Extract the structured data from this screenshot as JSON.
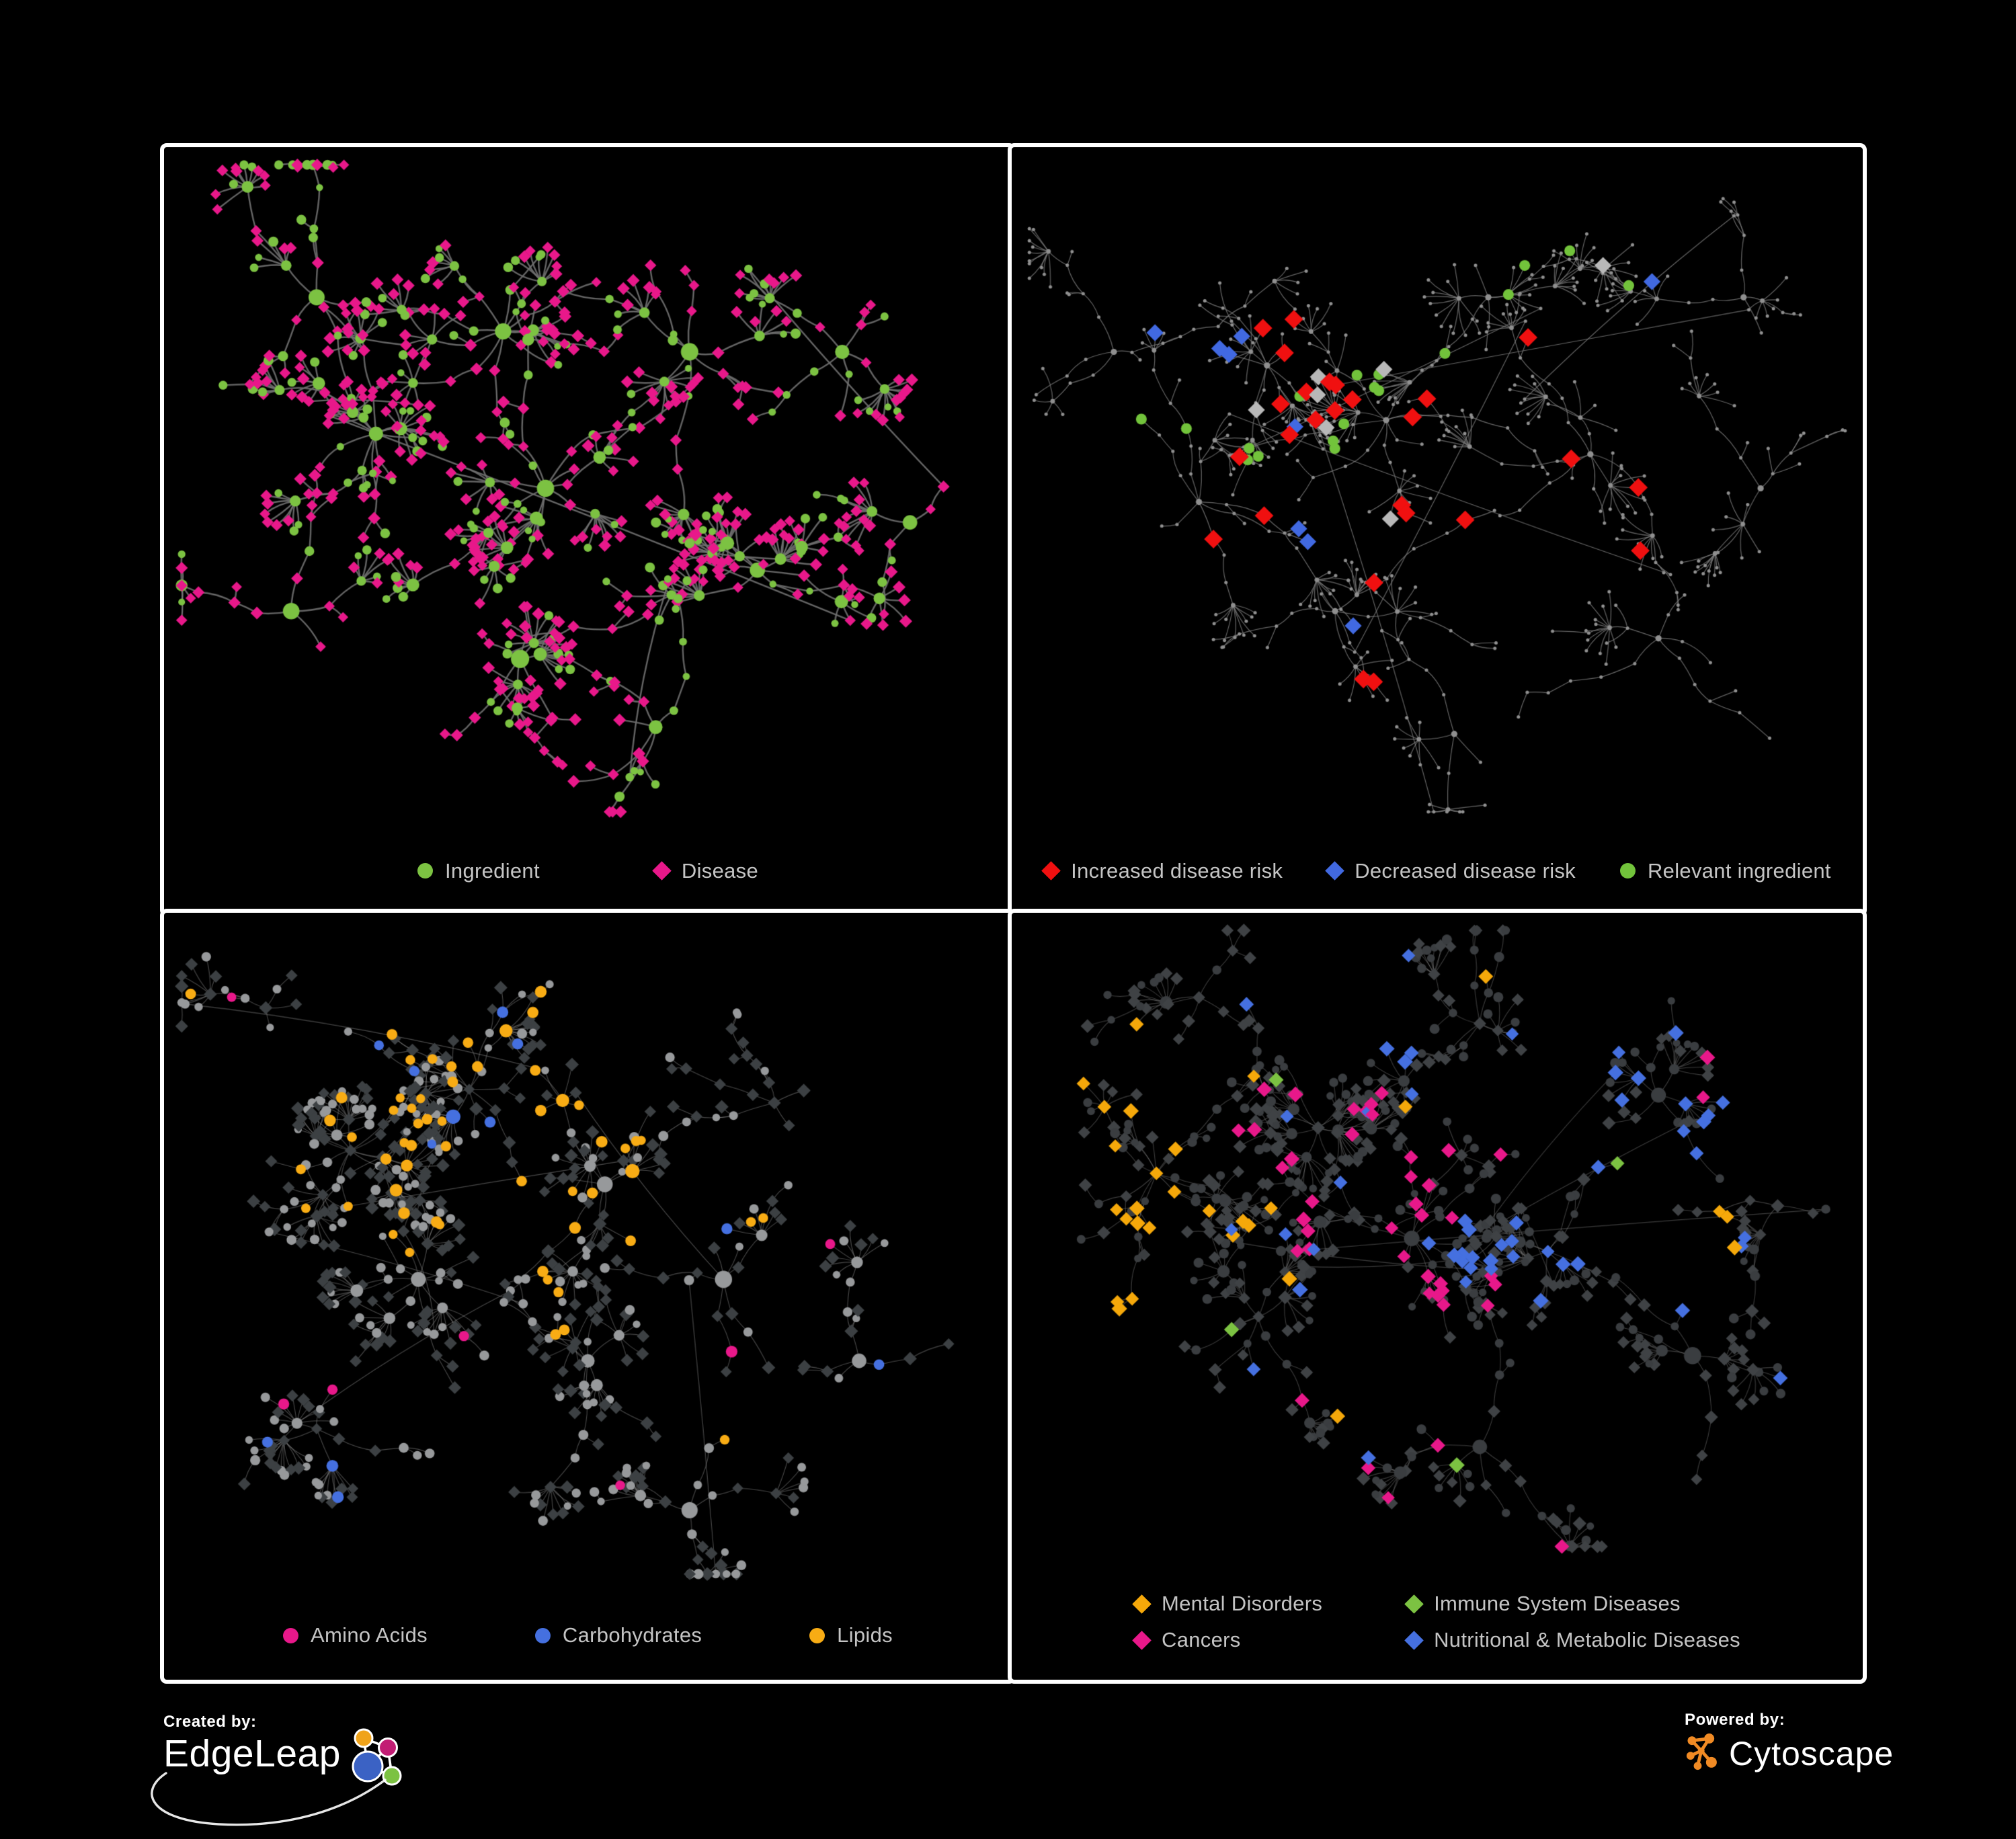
{
  "branding": {
    "created_by_label": "Created by:",
    "created_by_brand": "EdgeLeap",
    "powered_by_label": "Powered by:",
    "powered_by_brand": "Cytoscape"
  },
  "colors": {
    "background": "#000000",
    "panel_border": "#FFFFFF",
    "legend_text": "#C4C4C4",
    "green": "#7CC242",
    "magenta": "#E8188A",
    "red": "#F01010",
    "blue": "#4169E1",
    "amber": "#F5A80A",
    "silver": "#B8B8B8",
    "cytoscape_orange": "#F08A24"
  },
  "chart_data": {
    "type": "network",
    "title": "",
    "layout": "four-panel node-link network figure, black background, white panel frames",
    "panels": [
      {
        "id": "ingredient-disease-network",
        "legend": [
          {
            "label": "Ingredient",
            "color": "#7CC242",
            "shape": "circle"
          },
          {
            "label": "Disease",
            "color": "#E8188A",
            "shape": "diamond"
          }
        ],
        "render": {
          "seed": 14,
          "clusters": [
            [
              0.4,
              0.27,
              11
            ],
            [
              0.25,
              0.42,
              12
            ],
            [
              0.45,
              0.5,
              10
            ],
            [
              0.62,
              0.3,
              7
            ],
            [
              0.18,
              0.22,
              5
            ],
            [
              0.7,
              0.62,
              7
            ],
            [
              0.42,
              0.75,
              7
            ],
            [
              0.8,
              0.3,
              5
            ],
            [
              0.58,
              0.85,
              5
            ],
            [
              0.15,
              0.68,
              4
            ],
            [
              0.88,
              0.55,
              3
            ]
          ],
          "steps": 4,
          "step": [
            30,
            70
          ],
          "subP": 0.2,
          "fan": [
            5,
            13
          ],
          "links": 6,
          "edge": {
            "color": "#6F6F6F",
            "width": 2.4,
            "alpha": 0.9
          },
          "paint": {
            "mode": "duo",
            "circle": "#7CC242",
            "diamond": "#E8188A",
            "circleProb": 0.3
          }
        }
      },
      {
        "id": "disease-risk-network",
        "legend": [
          {
            "label": "Increased disease risk",
            "color": "#F01010",
            "shape": "diamond"
          },
          {
            "label": "Decreased disease risk",
            "color": "#4169E1",
            "shape": "diamond"
          },
          {
            "label": "Relevant ingredient",
            "color": "#72C33B",
            "shape": "circle"
          }
        ],
        "render": {
          "seed": 27,
          "clusters": [
            [
              0.3,
              0.32,
              10
            ],
            [
              0.44,
              0.4,
              9
            ],
            [
              0.22,
              0.52,
              7
            ],
            [
              0.56,
              0.22,
              6
            ],
            [
              0.68,
              0.45,
              7
            ],
            [
              0.38,
              0.68,
              6
            ],
            [
              0.76,
              0.72,
              5
            ],
            [
              0.86,
              0.22,
              4
            ],
            [
              0.12,
              0.3,
              4
            ],
            [
              0.52,
              0.86,
              4
            ],
            [
              0.88,
              0.5,
              3
            ]
          ],
          "steps": 6,
          "step": [
            26,
            60
          ],
          "subP": 0.18,
          "fan": [
            4,
            11
          ],
          "links": 6,
          "edge": {
            "color": "#7D7D7D",
            "width": 1.2,
            "alpha": 0.8
          },
          "paint": {
            "mode": "spot",
            "base": "#8F8F8F",
            "highlights": [
              {
                "color": "#F01010",
                "shape": "diamond",
                "size": 11,
                "count": 26,
                "clusters": [
                  0,
                  1,
                  2,
                  4,
                  5
                ]
              },
              {
                "color": "#B8B8B8",
                "shape": "diamond",
                "size": 10,
                "count": 7,
                "clusters": [
                  0,
                  1,
                  3
                ]
              },
              {
                "color": "#4169E1",
                "shape": "diamond",
                "size": 10,
                "count": 9,
                "clusters": [
                  0,
                  2,
                  7
                ]
              },
              {
                "color": "#72C33B",
                "shape": "circle",
                "size": 8,
                "count": 18,
                "clusters": [
                  0,
                  1,
                  2,
                  3
                ]
              }
            ]
          }
        }
      },
      {
        "id": "nutrient-class-network",
        "legend": [
          {
            "label": "Amino Acids",
            "color": "#E8188A",
            "shape": "circle"
          },
          {
            "label": "Carbohydrates",
            "color": "#4570E0",
            "shape": "circle"
          },
          {
            "label": "Lipids",
            "color": "#F8AC14",
            "shape": "circle"
          }
        ],
        "render": {
          "seed": 41,
          "clusters": [
            [
              0.22,
              0.35,
              12
            ],
            [
              0.36,
              0.26,
              10
            ],
            [
              0.3,
              0.54,
              10
            ],
            [
              0.52,
              0.4,
              8
            ],
            [
              0.5,
              0.66,
              8
            ],
            [
              0.66,
              0.54,
              6
            ],
            [
              0.18,
              0.76,
              5
            ],
            [
              0.72,
              0.28,
              5
            ],
            [
              0.82,
              0.66,
              4
            ],
            [
              0.62,
              0.88,
              4
            ],
            [
              0.12,
              0.14,
              4
            ]
          ],
          "steps": 4,
          "step": [
            28,
            64
          ],
          "subP": 0.21,
          "fan": [
            5,
            13
          ],
          "links": 7,
          "edge": {
            "color": "#A0A0A0",
            "width": 1.1,
            "alpha": 0.45
          },
          "paint": {
            "mode": "classes",
            "colorShape": "circle",
            "diamondFrac": 0.5,
            "baseCircle": "#97999B",
            "baseDiamond": "#3C4043",
            "clusterColors": {
              "0": [
                [
                  "#F8AC14",
                  0.15
                ]
              ],
              "1": [
                [
                  "#F8AC14",
                  0.42
                ],
                [
                  "#4570E0",
                  0.2
                ]
              ],
              "2": [
                [
                  "#F8AC14",
                  0.1
                ],
                [
                  "#E8188A",
                  0.05
                ]
              ],
              "3": [
                [
                  "#F8AC14",
                  0.38
                ]
              ],
              "4": [
                [
                  "#F8AC14",
                  0.15
                ],
                [
                  "#E8188A",
                  0.07
                ]
              ]
            },
            "defaultColors": [
              [
                "#E8188A",
                0.08
              ],
              [
                "#F8AC14",
                0.06
              ],
              [
                "#4570E0",
                0.04
              ]
            ]
          }
        }
      },
      {
        "id": "disease-class-network",
        "legend": [
          {
            "label": "Mental Disorders",
            "color": "#F5A80A",
            "shape": "diamond"
          },
          {
            "label": "Immune System Diseases",
            "color": "#7CC242",
            "shape": "diamond"
          },
          {
            "label": "Cancers",
            "color": "#E8188A",
            "shape": "diamond"
          },
          {
            "label": "Nutritional & Metabolic Diseases",
            "color": "#4570E0",
            "shape": "diamond"
          }
        ],
        "render": {
          "seed": 58,
          "clusters": [
            [
              0.17,
              0.4,
              12
            ],
            [
              0.36,
              0.33,
              10
            ],
            [
              0.47,
              0.5,
              10
            ],
            [
              0.63,
              0.52,
              8
            ],
            [
              0.29,
              0.62,
              7
            ],
            [
              0.55,
              0.17,
              7
            ],
            [
              0.76,
              0.28,
              6
            ],
            [
              0.8,
              0.68,
              5
            ],
            [
              0.22,
              0.13,
              5
            ],
            [
              0.55,
              0.82,
              5
            ],
            [
              0.9,
              0.45,
              3
            ]
          ],
          "steps": 4,
          "step": [
            28,
            62
          ],
          "subP": 0.21,
          "fan": [
            5,
            12
          ],
          "links": 7,
          "edge": {
            "color": "#8F8F8F",
            "width": 1.1,
            "alpha": 0.42
          },
          "paint": {
            "mode": "classes",
            "colorShape": "diamond",
            "diamondFrac": 0.6,
            "baseCircle": "#3A3D40",
            "baseDiamond": "#3F4245",
            "clusterColors": {
              "0": [
                [
                  "#F5A80A",
                  0.6
                ]
              ],
              "1": [
                [
                  "#E8188A",
                  0.18
                ],
                [
                  "#4570E0",
                  0.1
                ],
                [
                  "#7CC242",
                  0.05
                ]
              ],
              "2": [
                [
                  "#E8188A",
                  0.45
                ],
                [
                  "#4570E0",
                  0.08
                ]
              ],
              "3": [
                [
                  "#4570E0",
                  0.45
                ],
                [
                  "#7CC242",
                  0.04
                ]
              ],
              "5": [
                [
                  "#4570E0",
                  0.3
                ],
                [
                  "#F5A80A",
                  0.08
                ]
              ],
              "6": [
                [
                  "#4570E0",
                  0.3
                ],
                [
                  "#E8188A",
                  0.12
                ]
              ],
              "7": [
                [
                  "#4570E0",
                  0.18
                ]
              ],
              "8": [
                [
                  "#4570E0",
                  0.15
                ],
                [
                  "#F5A80A",
                  0.1
                ]
              ],
              "9": [
                [
                  "#E8188A",
                  0.12
                ],
                [
                  "#4570E0",
                  0.1
                ],
                [
                  "#7CC242",
                  0.05
                ]
              ]
            },
            "defaultColors": [
              [
                "#4570E0",
                0.1
              ],
              [
                "#F5A80A",
                0.06
              ],
              [
                "#E8188A",
                0.06
              ],
              [
                "#7CC242",
                0.03
              ]
            ]
          }
        }
      }
    ]
  }
}
